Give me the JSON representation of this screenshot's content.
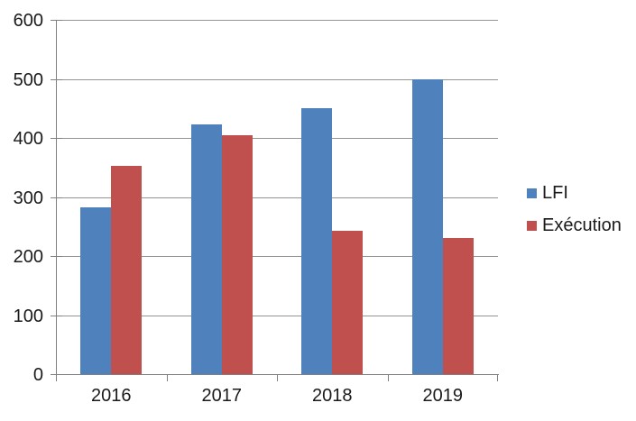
{
  "chart_data": {
    "type": "bar",
    "categories": [
      "2016",
      "2017",
      "2018",
      "2019"
    ],
    "series": [
      {
        "name": "LFI",
        "color": "#4F81BD",
        "values": [
          283,
          423,
          450,
          500
        ]
      },
      {
        "name": "Exécution",
        "color": "#C0504D",
        "values": [
          352,
          405,
          243,
          231
        ]
      }
    ],
    "title": "",
    "xlabel": "",
    "ylabel": "",
    "ylim": [
      0,
      600
    ],
    "ytick_step": 100,
    "y_tick_labels": [
      "0",
      "100",
      "200",
      "300",
      "400",
      "500",
      "600"
    ],
    "grid": true,
    "legend_position": "right",
    "colors": {
      "axis": "#808080",
      "gridline": "#949494",
      "text": "#1a1a1a",
      "background": "#ffffff"
    }
  }
}
